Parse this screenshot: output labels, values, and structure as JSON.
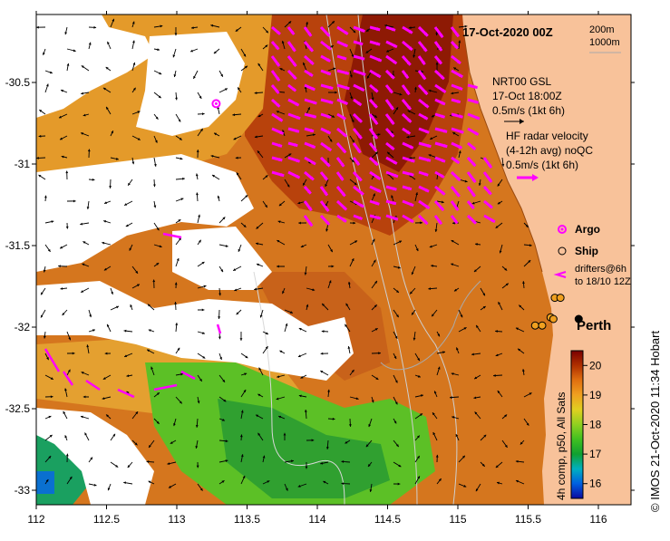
{
  "map": {
    "date_label": "17-Oct-2020 00Z",
    "isobath_labels": [
      "200m",
      "1000m"
    ],
    "land_color": "#f8c29a",
    "nrt_label": "NRT00 GSL",
    "nrt_time": "17-Oct 18:00Z",
    "nrt_scale": "0.5m/s (1kt 6h)",
    "hf_label": "HF radar velocity",
    "hf_avg": "(4-12h avg) noQC",
    "hf_scale": "0.5m/s (1kt 6h)",
    "hf_arrow_color": "#ff00ff",
    "legend_argo": "Argo",
    "legend_ship": "Ship",
    "legend_drifters_1": "drifters@6h",
    "legend_drifters_2": "to 18/10 12Z",
    "city": "Perth",
    "x_ticks": [
      "112",
      "112.5",
      "113",
      "113.5",
      "114",
      "114.5",
      "115",
      "115.5",
      "116"
    ],
    "y_ticks": [
      "-30.5",
      "-31",
      "-31.5",
      "-32",
      "-32.5",
      "-33"
    ],
    "colorbar_ticks": [
      "16",
      "17",
      "18",
      "19",
      "20"
    ],
    "colorbar_label": "4h comp, p50, All Sats",
    "credit": "© IMOS 21-Oct-2020 11:34 Hobart"
  },
  "chart_data": {
    "type": "heatmap",
    "title": "17-Oct-2020 00Z",
    "xlim": [
      112.0,
      116.3
    ],
    "ylim": [
      -33.1,
      -30.1
    ],
    "color_scale": {
      "min": 15.5,
      "max": 20.5,
      "ticks": [
        16,
        17,
        18,
        19,
        20
      ],
      "label": "4h comp, p50, All Sats"
    },
    "x_ticks": [
      112,
      112.5,
      113,
      113.5,
      114,
      114.5,
      115,
      115.5,
      116
    ],
    "y_ticks": [
      -30.5,
      -31,
      -31.5,
      -32,
      -32.5,
      -33
    ],
    "markers": [
      {
        "name": "Argo",
        "lon": 113.28,
        "lat": -30.63
      },
      {
        "name": "Perth",
        "lon": 115.86,
        "lat": -31.95
      }
    ],
    "ship_positions": [
      {
        "lon": 115.55,
        "lat": -31.99
      },
      {
        "lon": 115.6,
        "lat": -31.99
      },
      {
        "lon": 115.66,
        "lat": -31.94
      },
      {
        "lon": 115.68,
        "lat": -31.95
      },
      {
        "lon": 115.69,
        "lat": -31.82
      },
      {
        "lon": 115.73,
        "lat": -31.82
      }
    ]
  }
}
